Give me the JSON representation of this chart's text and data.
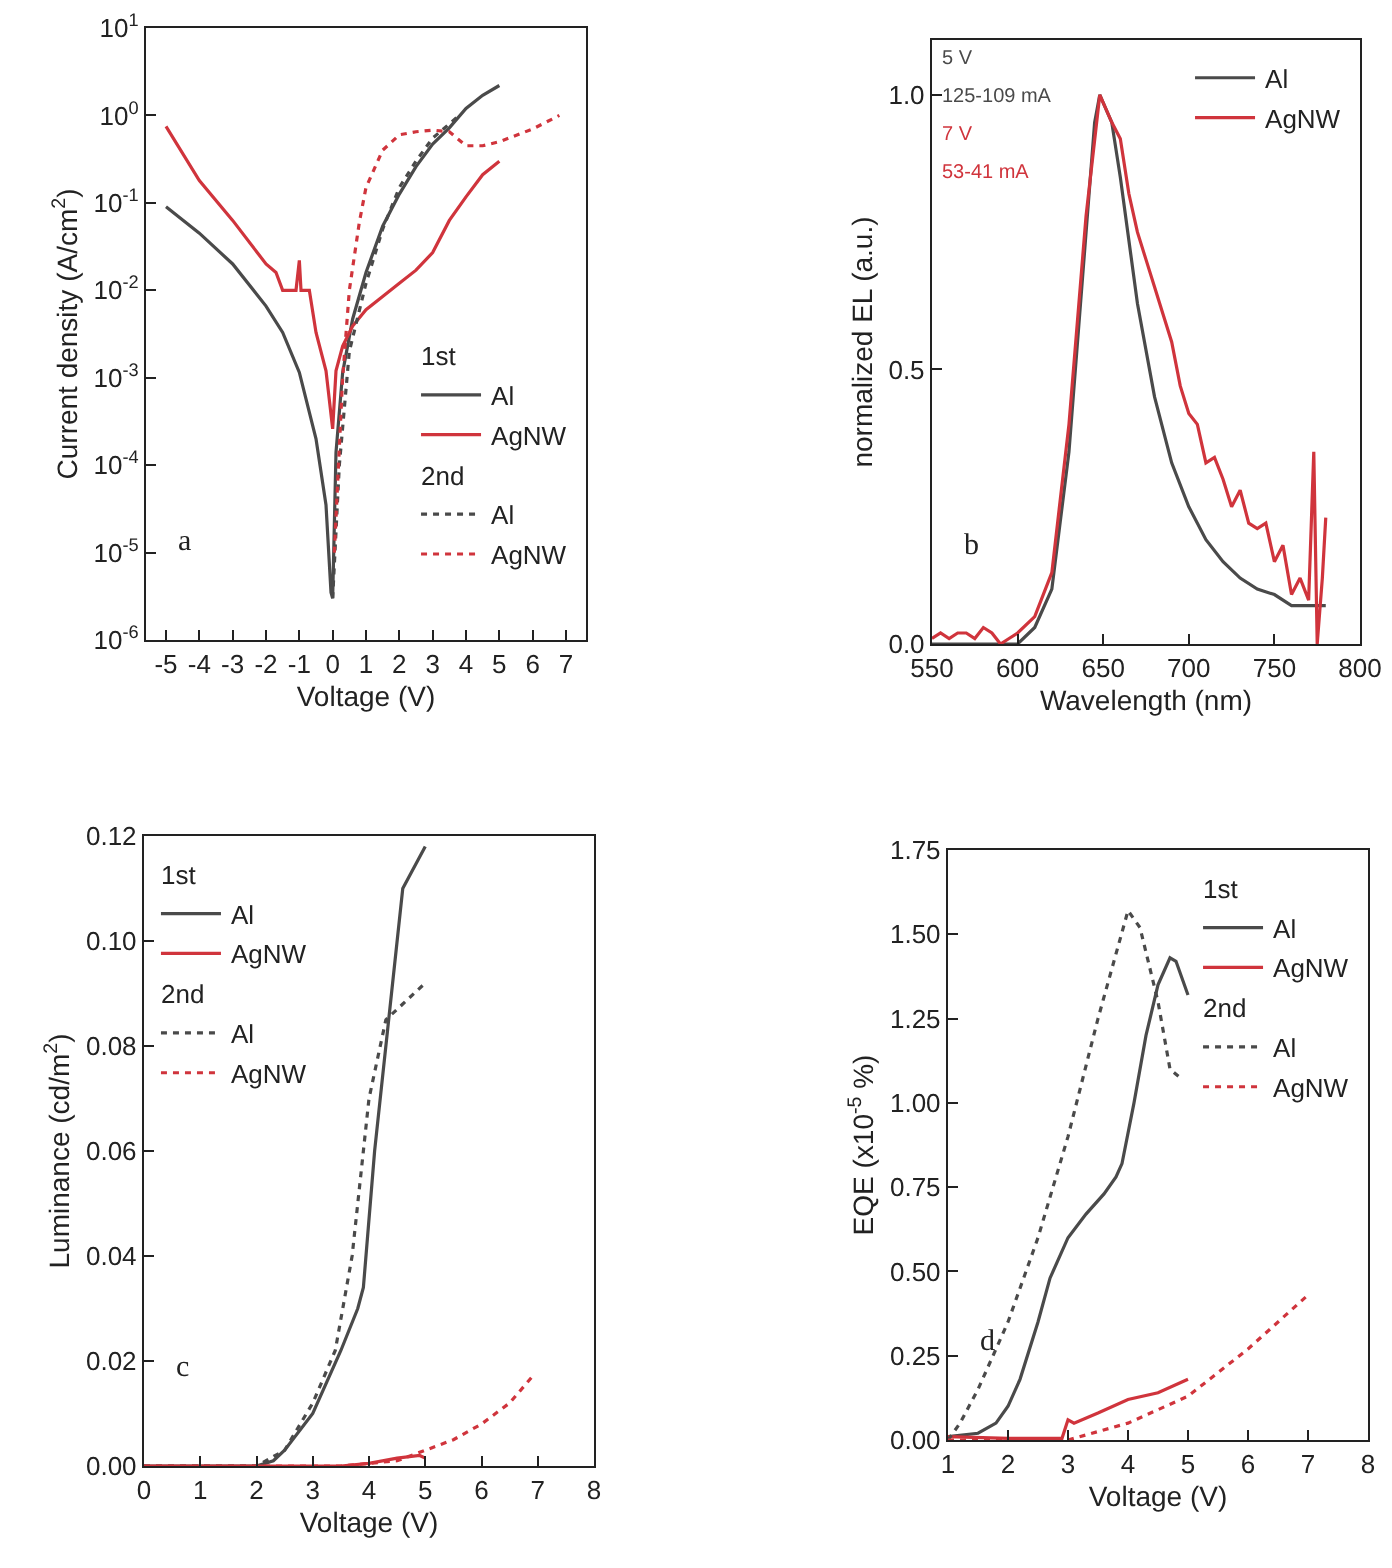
{
  "chart_data": [
    {
      "type": "line",
      "xlabel": "Voltage (V)",
      "ylabel": "Current density (A/cm$^{2}$)",
      "log": true,
      "legend": "bottom right",
      "legend_title": [
        "1st",
        "2nd"
      ],
      "annotations": [
        "a"
      ],
      "xlim": [
        -5.6,
        7.6
      ],
      "xticks": [
        -5,
        -4,
        -3,
        -2,
        -1,
        0,
        1,
        2,
        3,
        4,
        5,
        6,
        7
      ],
      "ylim": [
        1e-06,
        10
      ],
      "yticks": [
        {
          "value": 1e-06,
          "label": "10$^{-6}$"
        },
        {
          "value": 1e-05,
          "label": "10$^{-5}$"
        },
        {
          "value": 0.0001,
          "label": "10$^{-4}$"
        },
        {
          "value": 0.001,
          "label": "10$^{-3}$"
        },
        {
          "value": 0.01,
          "label": "10$^{-2}$"
        },
        {
          "value": 0.1,
          "label": "10$^{-1}$"
        },
        {
          "value": 1,
          "label": "10$^{0}$"
        },
        {
          "value": 10,
          "label": "10$^{1}$"
        }
      ],
      "series": [
        {
          "name": "Al",
          "color": "#4a4a4a",
          "line_style": "solid",
          "x": [
            -5,
            -4,
            -3,
            -2,
            -1.5,
            -1,
            -0.5,
            -0.2,
            -0.05,
            0,
            0.1,
            0.3,
            0.6,
            1,
            1.5,
            2,
            2.5,
            3,
            3.5,
            4,
            4.5,
            5
          ],
          "values": [
            0.09,
            0.045,
            0.02,
            0.0066,
            0.0033,
            0.00115,
            0.0002,
            3.5e-05,
            3.5e-06,
            3e-06,
            0.00014,
            0.00115,
            0.0047,
            0.016,
            0.054,
            0.126,
            0.26,
            0.47,
            0.72,
            1.2,
            1.7,
            2.2
          ]
        },
        {
          "name": "AgNW",
          "color": "#d0343c",
          "line_style": "solid",
          "x": [
            -5,
            -4,
            -3,
            -2,
            -1.7,
            -1.5,
            -1.1,
            -1,
            -0.95,
            -0.7,
            -0.5,
            -0.2,
            0,
            0.1,
            0.3,
            0.6,
            1,
            1.5,
            2,
            2.5,
            3,
            3.5,
            4,
            4.5,
            5
          ],
          "values": [
            0.75,
            0.18,
            0.063,
            0.02,
            0.016,
            0.01,
            0.01,
            0.022,
            0.01,
            0.01,
            0.0033,
            0.0012,
            0.00026,
            0.0012,
            0.0023,
            0.0039,
            0.006,
            0.0085,
            0.012,
            0.017,
            0.027,
            0.063,
            0.117,
            0.21,
            0.3
          ]
        },
        {
          "name": "Al",
          "color": "#4a4a4a",
          "line_style": "dotted",
          "x": [
            0,
            0.2,
            0.5,
            1,
            1.5,
            2,
            2.5,
            3,
            3.5,
            3.8
          ],
          "values": [
            3e-06,
            0.0001,
            0.002,
            0.012,
            0.05,
            0.15,
            0.3,
            0.55,
            0.8,
            1.0
          ]
        },
        {
          "name": "AgNW",
          "color": "#d0343c",
          "line_style": "dotted",
          "x": [
            0.05,
            0.3,
            0.5,
            0.8,
            1,
            1.5,
            2,
            2.5,
            3,
            3.5,
            4,
            4.5,
            5,
            6,
            6.8
          ],
          "values": [
            1e-05,
            0.001,
            0.01,
            0.06,
            0.15,
            0.4,
            0.6,
            0.65,
            0.68,
            0.65,
            0.45,
            0.45,
            0.5,
            0.7,
            1.0
          ]
        }
      ]
    },
    {
      "type": "line",
      "xlabel": "Wavelength (nm)",
      "ylabel": "normalized EL (a.u.)",
      "legend": "top right",
      "annotations": [
        "5 V",
        "125-109 mA",
        "7 V",
        "53-41 mA",
        "b"
      ],
      "xlim": [
        550,
        800
      ],
      "xticks": [
        550,
        600,
        650,
        700,
        750,
        800
      ],
      "ylim": [
        0,
        1.1
      ],
      "yticks": [
        {
          "value": 0,
          "label": "0.0"
        },
        {
          "value": 0.5,
          "label": "0.5"
        },
        {
          "value": 1,
          "label": "1.0"
        }
      ],
      "series": [
        {
          "name": "Al",
          "color": "#4a4a4a",
          "line_style": "solid",
          "x": [
            550,
            560,
            570,
            580,
            590,
            600,
            610,
            620,
            630,
            640,
            645,
            648,
            655,
            660,
            670,
            680,
            690,
            700,
            710,
            720,
            730,
            740,
            750,
            760,
            770,
            780
          ],
          "values": [
            0.0,
            0.0,
            0.0,
            0.0,
            0.0,
            0.0,
            0.03,
            0.1,
            0.35,
            0.75,
            0.95,
            1.0,
            0.95,
            0.85,
            0.62,
            0.45,
            0.33,
            0.25,
            0.19,
            0.15,
            0.12,
            0.1,
            0.09,
            0.07,
            0.07,
            0.07
          ]
        },
        {
          "name": "AgNW",
          "color": "#d0343c",
          "line_style": "solid",
          "x": [
            550,
            555,
            560,
            565,
            570,
            575,
            580,
            585,
            590,
            595,
            600,
            610,
            620,
            630,
            640,
            648,
            655,
            660,
            665,
            670,
            675,
            680,
            685,
            690,
            695,
            700,
            705,
            710,
            715,
            720,
            725,
            730,
            735,
            740,
            745,
            750,
            755,
            760,
            765,
            770,
            773,
            775,
            778,
            780
          ],
          "values": [
            0.01,
            0.02,
            0.01,
            0.02,
            0.02,
            0.01,
            0.03,
            0.02,
            0.0,
            0.01,
            0.02,
            0.05,
            0.13,
            0.4,
            0.78,
            1.0,
            0.95,
            0.92,
            0.82,
            0.75,
            0.7,
            0.65,
            0.6,
            0.55,
            0.47,
            0.42,
            0.4,
            0.33,
            0.34,
            0.3,
            0.25,
            0.28,
            0.22,
            0.21,
            0.22,
            0.15,
            0.18,
            0.09,
            0.12,
            0.08,
            0.35,
            0.0,
            0.12,
            0.23
          ]
        }
      ]
    },
    {
      "type": "line",
      "xlabel": "Voltage (V)",
      "ylabel": "Luminance (cd/m$^{2}$)",
      "legend": "top left",
      "legend_title": [
        "1st",
        "2nd"
      ],
      "annotations": [
        "c"
      ],
      "xlim": [
        0,
        8
      ],
      "xticks": [
        0,
        1,
        2,
        3,
        4,
        5,
        6,
        7,
        8
      ],
      "ylim": [
        0,
        0.12
      ],
      "yticks": [
        {
          "value": 0,
          "label": "0.00"
        },
        0.02,
        0.04,
        0.06,
        0.08,
        {
          "value": 0.1,
          "label": "0.10"
        },
        0.12
      ],
      "series": [
        {
          "name": "Al",
          "color": "#4a4a4a",
          "line_style": "solid",
          "x": [
            0,
            2,
            2.3,
            2.5,
            3,
            3.5,
            3.8,
            3.9,
            4.1,
            4.4,
            4.6,
            4.75,
            5
          ],
          "values": [
            0,
            0,
            0.001,
            0.003,
            0.01,
            0.022,
            0.03,
            0.034,
            0.06,
            0.09,
            0.11,
            0.113,
            0.118
          ]
        },
        {
          "name": "AgNW",
          "color": "#d0343c",
          "line_style": "solid",
          "x": [
            0,
            3.5,
            4,
            4.5,
            4.9,
            5
          ],
          "values": [
            0,
            0,
            0.0005,
            0.0015,
            0.002,
            0.0015
          ]
        },
        {
          "name": "Al",
          "color": "#4a4a4a",
          "line_style": "dotted",
          "x": [
            0,
            2,
            2.5,
            3,
            3.4,
            3.7,
            4,
            4.3,
            4.6,
            5
          ],
          "values": [
            0,
            0,
            0.003,
            0.012,
            0.022,
            0.04,
            0.07,
            0.085,
            0.088,
            0.092
          ]
        },
        {
          "name": "AgNW",
          "color": "#d0343c",
          "line_style": "dotted",
          "x": [
            0,
            3.5,
            4,
            4.5,
            5,
            5.5,
            6,
            6.5,
            6.9
          ],
          "values": [
            0,
            0,
            0.0005,
            0.001,
            0.003,
            0.005,
            0.008,
            0.012,
            0.017
          ]
        }
      ]
    },
    {
      "type": "line",
      "xlabel": "Voltage (V)",
      "ylabel": "EQE (x10$^{-5}$ %)",
      "legend": "top right",
      "legend_title": [
        "1st",
        "2nd"
      ],
      "annotations": [
        "d"
      ],
      "xlim": [
        1,
        8
      ],
      "xticks": [
        1,
        2,
        3,
        4,
        5,
        6,
        7,
        8
      ],
      "ylim": [
        0,
        1.75
      ],
      "yticks": [
        {
          "value": 0,
          "label": "0.00"
        },
        0.25,
        {
          "value": 0.5,
          "label": "0.50"
        },
        0.75,
        {
          "value": 1,
          "label": "1.00"
        },
        1.25,
        {
          "value": 1.5,
          "label": "1.50"
        },
        1.75
      ],
      "series": [
        {
          "name": "Al",
          "color": "#4a4a4a",
          "line_style": "solid",
          "x": [
            1,
            1.5,
            1.8,
            2,
            2.2,
            2.5,
            2.7,
            3,
            3.3,
            3.6,
            3.8,
            3.9,
            4.1,
            4.3,
            4.5,
            4.7,
            4.8,
            5
          ],
          "values": [
            0.01,
            0.02,
            0.05,
            0.1,
            0.18,
            0.35,
            0.48,
            0.6,
            0.67,
            0.73,
            0.78,
            0.82,
            1.0,
            1.2,
            1.35,
            1.43,
            1.42,
            1.32
          ]
        },
        {
          "name": "AgNW",
          "color": "#d0343c",
          "line_style": "solid",
          "x": [
            1,
            2,
            2.9,
            3,
            3.1,
            3.5,
            4,
            4.5,
            5
          ],
          "values": [
            0.01,
            0.005,
            0.005,
            0.06,
            0.05,
            0.08,
            0.12,
            0.14,
            0.18
          ]
        },
        {
          "name": "Al",
          "color": "#4a4a4a",
          "line_style": "dotted",
          "x": [
            1,
            1.2,
            1.5,
            2,
            2.5,
            3,
            3.5,
            4,
            4.2,
            4.5,
            4.7,
            4.9
          ],
          "values": [
            0,
            0.05,
            0.15,
            0.35,
            0.6,
            0.9,
            1.25,
            1.57,
            1.52,
            1.3,
            1.1,
            1.07
          ]
        },
        {
          "name": "AgNW",
          "color": "#d0343c",
          "line_style": "dotted",
          "x": [
            1,
            3,
            4,
            5,
            6,
            7
          ],
          "values": [
            0,
            0,
            0.05,
            0.13,
            0.27,
            0.43
          ]
        }
      ]
    }
  ]
}
